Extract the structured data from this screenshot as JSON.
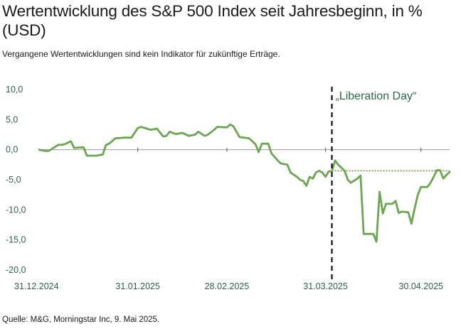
{
  "header": {
    "title": "Wertentwicklung des S&P 500 Index seit Jahresbeginn, in % (USD)",
    "subtitle": "Vergangene Wertentwicklungen sind kein Indikator für zukünftige Erträge."
  },
  "footer": {
    "source": "Quelle: M&G, Morningstar Inc, 9. Mai 2025."
  },
  "colors": {
    "series": "#6aa84f",
    "axis_text": "#2f6049",
    "zero_line": "#9a9a9a",
    "marker_line": "#111111",
    "reference_line": "#5e9e3e"
  },
  "chart_data": {
    "type": "line",
    "title": "Wertentwicklung des S&P 500 Index seit Jahresbeginn, in % (USD)",
    "xlabel": "",
    "ylabel": "",
    "ylim": [
      -20,
      10
    ],
    "xlim": [
      "2024-12-31",
      "2025-05-09"
    ],
    "y_ticks": [
      "10,0",
      "5,0",
      "0,0",
      "-5,0",
      "-10,0",
      "-15,0",
      "-20,0"
    ],
    "y_tick_values": [
      10,
      5,
      0,
      -5,
      -10,
      -15,
      -20
    ],
    "x_ticks": [
      {
        "date": "2024-12-31",
        "label": "31.12.2024"
      },
      {
        "date": "2025-01-31",
        "label": "31.01.2025"
      },
      {
        "date": "2025-02-28",
        "label": "28.02.2025"
      },
      {
        "date": "2025-03-31",
        "label": "31.03.2025"
      },
      {
        "date": "2025-04-30",
        "label": "30.04.2025"
      }
    ],
    "grid": false,
    "annotation": {
      "label": "„Liberation Day“",
      "date": "2025-04-02"
    },
    "reference_level": -3.5,
    "series": [
      {
        "points": [
          [
            "2024-12-31",
            0.0
          ],
          [
            "2025-01-02",
            -0.2
          ],
          [
            "2025-01-03",
            -0.2
          ],
          [
            "2025-01-06",
            0.8
          ],
          [
            "2025-01-07",
            0.8
          ],
          [
            "2025-01-08",
            0.9
          ],
          [
            "2025-01-10",
            1.4
          ],
          [
            "2025-01-11",
            0.3
          ],
          [
            "2025-01-14",
            0.4
          ],
          [
            "2025-01-15",
            -1.0
          ],
          [
            "2025-01-18",
            -1.0
          ],
          [
            "2025-01-20",
            -0.8
          ],
          [
            "2025-01-21",
            0.8
          ],
          [
            "2025-01-22",
            1.0
          ],
          [
            "2025-01-24",
            1.9
          ],
          [
            "2025-01-27",
            2.0
          ],
          [
            "2025-01-29",
            2.0
          ],
          [
            "2025-01-30",
            2.8
          ],
          [
            "2025-01-31",
            3.6
          ],
          [
            "2025-02-01",
            3.8
          ],
          [
            "2025-02-04",
            3.3
          ],
          [
            "2025-02-06",
            3.5
          ],
          [
            "2025-02-08",
            2.2
          ],
          [
            "2025-02-09",
            2.3
          ],
          [
            "2025-02-10",
            3.0
          ],
          [
            "2025-02-12",
            2.6
          ],
          [
            "2025-02-14",
            2.8
          ],
          [
            "2025-02-16",
            2.3
          ],
          [
            "2025-02-18",
            2.5
          ],
          [
            "2025-02-19",
            3.0
          ],
          [
            "2025-02-21",
            2.3
          ],
          [
            "2025-02-22",
            2.5
          ],
          [
            "2025-02-24",
            3.3
          ],
          [
            "2025-02-25",
            3.8
          ],
          [
            "2025-02-28",
            3.7
          ],
          [
            "2025-03-01",
            4.2
          ],
          [
            "2025-03-02",
            3.9
          ],
          [
            "2025-03-04",
            2.1
          ],
          [
            "2025-03-07",
            1.9
          ],
          [
            "2025-03-09",
            0.9
          ],
          [
            "2025-03-10",
            -0.4
          ],
          [
            "2025-03-11",
            1.0
          ],
          [
            "2025-03-13",
            1.0
          ],
          [
            "2025-03-14",
            -0.6
          ],
          [
            "2025-03-15",
            -1.2
          ],
          [
            "2025-03-16",
            -1.8
          ],
          [
            "2025-03-17",
            -2.3
          ],
          [
            "2025-03-19",
            -2.5
          ],
          [
            "2025-03-20",
            -3.8
          ],
          [
            "2025-03-22",
            -4.5
          ],
          [
            "2025-03-23",
            -5.0
          ],
          [
            "2025-03-24",
            -5.2
          ],
          [
            "2025-03-25",
            -6.0
          ],
          [
            "2025-03-26",
            -4.5
          ],
          [
            "2025-03-27",
            -4.8
          ],
          [
            "2025-03-28",
            -3.8
          ],
          [
            "2025-03-29",
            -3.5
          ],
          [
            "2025-03-30",
            -3.8
          ],
          [
            "2025-03-31",
            -4.5
          ],
          [
            "2025-04-01",
            -3.6
          ],
          [
            "2025-04-02",
            -3.6
          ],
          [
            "2025-04-03",
            -1.8
          ],
          [
            "2025-04-04",
            -2.5
          ],
          [
            "2025-04-06",
            -3.5
          ],
          [
            "2025-04-07",
            -5.0
          ],
          [
            "2025-04-08",
            -5.5
          ],
          [
            "2025-04-10",
            -4.8
          ],
          [
            "2025-04-11",
            -4.3
          ],
          [
            "2025-04-12",
            -14.0
          ],
          [
            "2025-04-15",
            -14.0
          ],
          [
            "2025-04-16",
            -15.3
          ],
          [
            "2025-04-17",
            -7.0
          ],
          [
            "2025-04-18",
            -10.6
          ],
          [
            "2025-04-19",
            -9.0
          ],
          [
            "2025-04-21",
            -9.0
          ],
          [
            "2025-04-22",
            -8.5
          ],
          [
            "2025-04-23",
            -10.5
          ],
          [
            "2025-04-24",
            -10.3
          ],
          [
            "2025-04-26",
            -10.4
          ],
          [
            "2025-04-27",
            -12.3
          ],
          [
            "2025-04-28",
            -9.8
          ],
          [
            "2025-04-29",
            -7.5
          ],
          [
            "2025-04-30",
            -6.2
          ],
          [
            "2025-05-02",
            -6.2
          ],
          [
            "2025-05-03",
            -5.5
          ],
          [
            "2025-05-04",
            -4.5
          ],
          [
            "2025-05-05",
            -3.4
          ],
          [
            "2025-05-06",
            -3.4
          ],
          [
            "2025-05-07",
            -4.8
          ],
          [
            "2025-05-08",
            -4.2
          ],
          [
            "2025-05-09",
            -3.7
          ]
        ]
      }
    ]
  }
}
